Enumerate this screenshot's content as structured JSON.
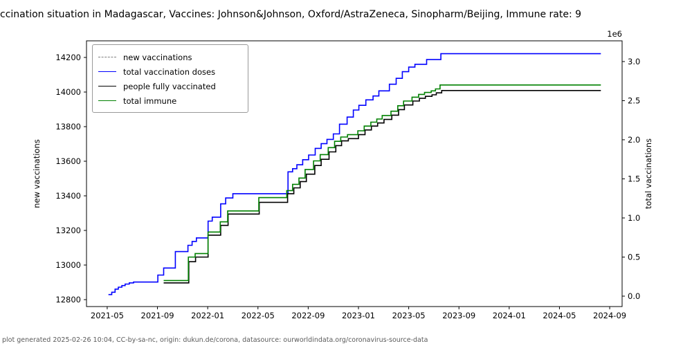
{
  "title": "ccination situation in Madagascar, Vaccines: Johnson&Johnson, Oxford/AstraZeneca, Sinopharm/Beijing, Immune rate: 9",
  "footer": {
    "text": "plot generated 2025-02-26 10:04, CC-by-sa-nc, origin: dukun.de/corona, datasource: ourworldindata.org/coronavirus-source-data"
  },
  "chart_data": {
    "type": "line",
    "style": "step-post",
    "title": "ccination situation in Madagascar, Vaccines: Johnson&Johnson, Oxford/AstraZeneca, Sinopharm/Beijing, Immune rate: 9",
    "xlabel": "",
    "ylabel_left": "new vaccinations",
    "ylabel_right": "total vaccinations",
    "right_axis_offset_text": "1e6",
    "x_domain": [
      2021.196,
      2024.749
    ],
    "left_ylim": [
      12760,
      14296
    ],
    "right_ylim": [
      -133000,
      3265000
    ],
    "x_tick_labels": [
      "2021-05",
      "2021-09",
      "2022-01",
      "2022-05",
      "2022-09",
      "2023-01",
      "2023-05",
      "2023-09",
      "2024-01",
      "2024-05",
      "2024-09"
    ],
    "left_ticks": [
      12800,
      13000,
      13200,
      13400,
      13600,
      13800,
      14000,
      14200
    ],
    "right_ticks": [
      0.0,
      0.5,
      1.0,
      1.5,
      2.0,
      2.5,
      3.0
    ],
    "grid": false,
    "legend_position": "upper-left",
    "legend": [
      {
        "key": "new_vaccinations",
        "label": "new vaccinations",
        "color": "#7f7f7f",
        "dashed": true
      },
      {
        "key": "total_vaccination_doses",
        "label": "total vaccination doses",
        "color": "#0000ff",
        "dashed": false
      },
      {
        "key": "people_fully_vaccinated",
        "label": "people fully vaccinated",
        "color": "#000000",
        "dashed": false
      },
      {
        "key": "total_immune",
        "label": "total immune",
        "color": "#008000",
        "dashed": false
      }
    ],
    "series": [
      {
        "name": "new vaccinations",
        "key": "new_vaccinations",
        "axis": "left",
        "color": "#7f7f7f",
        "dashed": true,
        "visible_in_plot": false,
        "points": []
      },
      {
        "name": "total vaccination doses",
        "key": "total_vaccination_doses",
        "axis": "right",
        "color": "#0000ff",
        "dashed": false,
        "visible_in_plot": true,
        "points": [
          [
            "2021-05-04",
            20000
          ],
          [
            "2021-05-12",
            50000
          ],
          [
            "2021-05-20",
            90000
          ],
          [
            "2021-05-28",
            115000
          ],
          [
            "2021-06-06",
            135000
          ],
          [
            "2021-06-14",
            155000
          ],
          [
            "2021-06-24",
            170000
          ],
          [
            "2021-07-04",
            180000
          ],
          [
            "2021-09-02",
            270000
          ],
          [
            "2021-09-16",
            360000
          ],
          [
            "2021-10-14",
            570000
          ],
          [
            "2021-11-14",
            650000
          ],
          [
            "2021-11-24",
            700000
          ],
          [
            "2021-12-04",
            745000
          ],
          [
            "2022-01-02",
            960000
          ],
          [
            "2022-01-12",
            1010000
          ],
          [
            "2022-02-02",
            1180000
          ],
          [
            "2022-02-14",
            1255000
          ],
          [
            "2022-03-01",
            1310000
          ],
          [
            "2022-07-13",
            1590000
          ],
          [
            "2022-07-24",
            1630000
          ],
          [
            "2022-08-04",
            1680000
          ],
          [
            "2022-08-18",
            1745000
          ],
          [
            "2022-09-02",
            1805000
          ],
          [
            "2022-09-18",
            1890000
          ],
          [
            "2022-10-02",
            1950000
          ],
          [
            "2022-10-16",
            2005000
          ],
          [
            "2022-11-01",
            2075000
          ],
          [
            "2022-11-16",
            2200000
          ],
          [
            "2022-12-04",
            2290000
          ],
          [
            "2022-12-19",
            2380000
          ],
          [
            "2023-01-02",
            2440000
          ],
          [
            "2023-01-19",
            2510000
          ],
          [
            "2023-02-06",
            2560000
          ],
          [
            "2023-02-20",
            2625000
          ],
          [
            "2023-03-15",
            2710000
          ],
          [
            "2023-04-01",
            2785000
          ],
          [
            "2023-04-16",
            2870000
          ],
          [
            "2023-05-01",
            2930000
          ],
          [
            "2023-05-16",
            2965000
          ],
          [
            "2023-06-14",
            3025000
          ],
          [
            "2023-07-18",
            3100000
          ],
          [
            "2024-08-10",
            3100000
          ]
        ]
      },
      {
        "name": "people fully vaccinated",
        "key": "people_fully_vaccinated",
        "axis": "right",
        "color": "#000000",
        "dashed": false,
        "visible_in_plot": true,
        "points": [
          [
            "2021-09-16",
            170000
          ],
          [
            "2021-11-16",
            440000
          ],
          [
            "2021-12-02",
            500000
          ],
          [
            "2022-01-02",
            780000
          ],
          [
            "2022-02-02",
            905000
          ],
          [
            "2022-02-20",
            1050000
          ],
          [
            "2022-05-04",
            1200000
          ],
          [
            "2022-07-12",
            1310000
          ],
          [
            "2022-07-27",
            1385000
          ],
          [
            "2022-08-12",
            1465000
          ],
          [
            "2022-08-27",
            1560000
          ],
          [
            "2022-09-17",
            1670000
          ],
          [
            "2022-10-02",
            1750000
          ],
          [
            "2022-10-21",
            1845000
          ],
          [
            "2022-11-07",
            1925000
          ],
          [
            "2022-11-21",
            1985000
          ],
          [
            "2022-12-07",
            2015000
          ],
          [
            "2023-01-01",
            2065000
          ],
          [
            "2023-01-17",
            2125000
          ],
          [
            "2023-02-02",
            2175000
          ],
          [
            "2023-02-17",
            2215000
          ],
          [
            "2023-03-02",
            2260000
          ],
          [
            "2023-03-21",
            2315000
          ],
          [
            "2023-04-07",
            2385000
          ],
          [
            "2023-04-21",
            2445000
          ],
          [
            "2023-05-11",
            2495000
          ],
          [
            "2023-05-27",
            2530000
          ],
          [
            "2023-06-11",
            2555000
          ],
          [
            "2023-06-27",
            2575000
          ],
          [
            "2023-07-07",
            2600000
          ],
          [
            "2023-07-20",
            2630000
          ],
          [
            "2024-08-10",
            2630000
          ]
        ]
      },
      {
        "name": "total immune",
        "key": "total_immune",
        "axis": "right",
        "color": "#008000",
        "dashed": false,
        "visible_in_plot": true,
        "points": [
          [
            "2021-09-16",
            200000
          ],
          [
            "2021-11-15",
            500000
          ],
          [
            "2021-12-01",
            545000
          ],
          [
            "2022-01-02",
            820000
          ],
          [
            "2022-02-01",
            950000
          ],
          [
            "2022-02-19",
            1090000
          ],
          [
            "2022-05-03",
            1260000
          ],
          [
            "2022-07-10",
            1350000
          ],
          [
            "2022-07-24",
            1430000
          ],
          [
            "2022-08-09",
            1510000
          ],
          [
            "2022-08-24",
            1620000
          ],
          [
            "2022-09-14",
            1730000
          ],
          [
            "2022-09-30",
            1810000
          ],
          [
            "2022-10-19",
            1900000
          ],
          [
            "2022-11-04",
            1980000
          ],
          [
            "2022-11-19",
            2035000
          ],
          [
            "2022-12-05",
            2065000
          ],
          [
            "2022-12-30",
            2115000
          ],
          [
            "2023-01-15",
            2175000
          ],
          [
            "2023-01-31",
            2225000
          ],
          [
            "2023-02-15",
            2265000
          ],
          [
            "2023-02-28",
            2310000
          ],
          [
            "2023-03-19",
            2365000
          ],
          [
            "2023-04-05",
            2435000
          ],
          [
            "2023-04-19",
            2495000
          ],
          [
            "2023-05-09",
            2545000
          ],
          [
            "2023-05-25",
            2580000
          ],
          [
            "2023-06-09",
            2605000
          ],
          [
            "2023-06-25",
            2625000
          ],
          [
            "2023-07-05",
            2650000
          ],
          [
            "2023-07-16",
            2700000
          ],
          [
            "2024-08-10",
            2700000
          ]
        ]
      }
    ]
  }
}
